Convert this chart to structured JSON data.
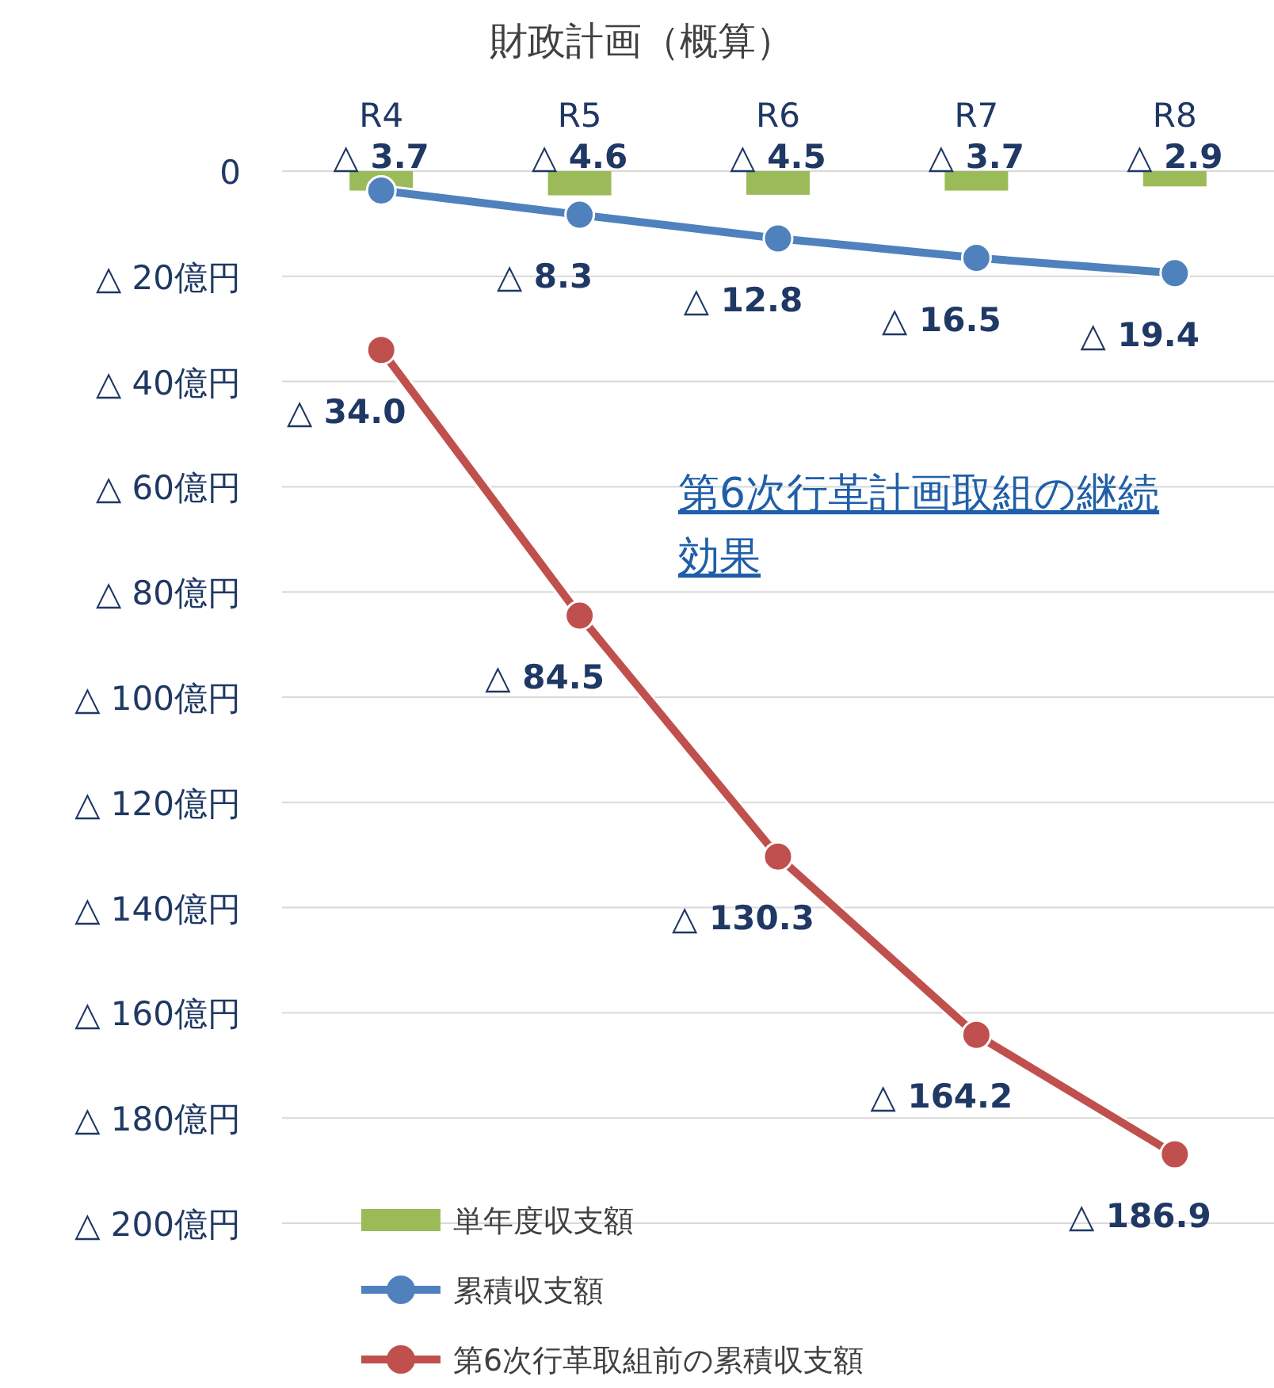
{
  "chart_data": {
    "type": "line",
    "title": "財政計画（概算）",
    "categories": [
      "R4",
      "R5",
      "R6",
      "R7",
      "R8"
    ],
    "ylim": [
      200,
      0
    ],
    "yticks": [
      0,
      {
        "value": 20,
        "label": "△ 20億円"
      },
      {
        "value": 40,
        "label": "△ 40億円"
      },
      {
        "value": 60,
        "label": "△ 60億円"
      },
      {
        "value": 80,
        "label": "△ 80億円"
      },
      {
        "value": 100,
        "label": "△ 100億円"
      },
      {
        "value": 120,
        "label": "△ 120億円"
      },
      {
        "value": 140,
        "label": "△ 140億円"
      },
      {
        "value": 160,
        "label": "△ 160億円"
      },
      {
        "value": 180,
        "label": "△ 180億円"
      },
      {
        "value": 200,
        "label": "△ 200億円"
      }
    ],
    "grid": "y",
    "legend": "bottom left",
    "marker": "circle",
    "series": [
      {
        "name": "単年度収支額",
        "type": "bar",
        "color": "#9bbb59",
        "values": [
          3.7,
          4.6,
          4.5,
          3.7,
          2.9
        ],
        "value_labels": [
          "△ 3.7",
          "△ 4.6",
          "△ 4.5",
          "△ 3.7",
          "△ 2.9"
        ]
      },
      {
        "name": "累積収支額",
        "color": "#4f81bd",
        "values": [
          3.7,
          8.3,
          12.8,
          16.5,
          19.4
        ],
        "value_labels": [
          null,
          "△ 8.3",
          "△ 12.8",
          "△ 16.5",
          "△ 19.4"
        ]
      },
      {
        "name": "第6次行革取組前の累積収支額",
        "color": "#c0504d",
        "values": [
          34.0,
          84.5,
          130.3,
          164.2,
          186.9
        ],
        "value_labels": [
          "△ 34.0",
          "△ 84.5",
          "△ 130.3",
          "△ 164.2",
          "△ 186.9"
        ]
      }
    ],
    "annotations": [
      "第6次行革計画取組の継続効果"
    ]
  }
}
